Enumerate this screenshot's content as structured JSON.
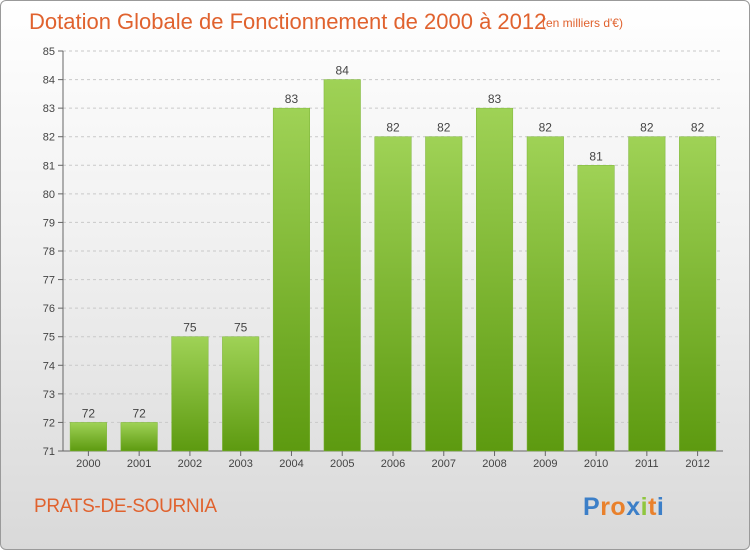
{
  "header": {
    "title": "Dotation Globale de Fonctionnement de 2000 à 2012",
    "unit": "(en milliers d'€)"
  },
  "footer": {
    "commune": "PRATS-DE-SOURNIA",
    "logo_letters": [
      "P",
      "r",
      "o",
      "x",
      "i",
      "t",
      "i"
    ],
    "logo_colors": [
      "#3c7fc8",
      "#e9812c",
      "#e9812c",
      "#3c7fc8",
      "#8fc63e",
      "#e9812c",
      "#3c7fc8"
    ]
  },
  "colors": {
    "title": "#e0622e",
    "bar_top": "#9fd256",
    "bar_bottom": "#5d9a10",
    "grid": "#c9c9c9",
    "axis_text": "#444444"
  },
  "chart_data": {
    "type": "bar",
    "categories": [
      "2000",
      "2001",
      "2002",
      "2003",
      "2004",
      "2005",
      "2006",
      "2007",
      "2008",
      "2009",
      "2010",
      "2011",
      "2012"
    ],
    "values": [
      72,
      72,
      75,
      75,
      83,
      84,
      82,
      82,
      83,
      82,
      81,
      82,
      82
    ],
    "ylim": [
      71,
      85
    ],
    "yticks": [
      71,
      72,
      73,
      74,
      75,
      76,
      77,
      78,
      79,
      80,
      81,
      82,
      83,
      84,
      85
    ],
    "grid": true,
    "data_labels": true
  }
}
